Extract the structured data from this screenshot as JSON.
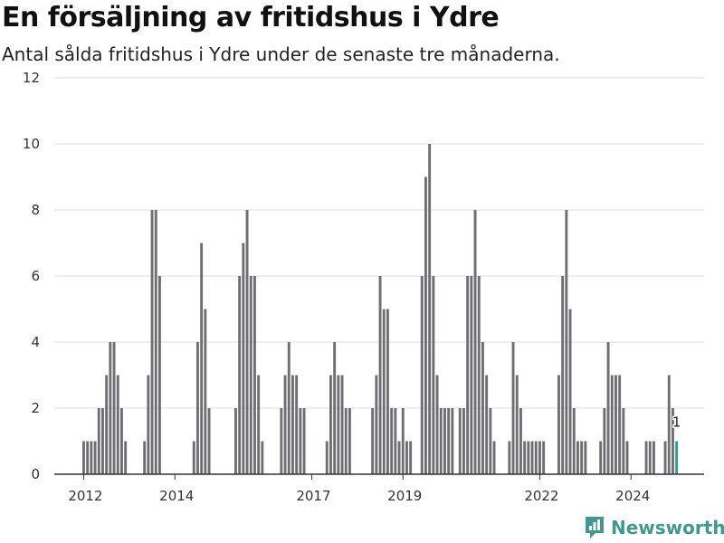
{
  "title": "En försäljning av fritidshus i Ydre",
  "subtitle": "Antal sålda fritidshus i Ydre under de senaste tre månaderna.",
  "brand": {
    "name": "Newsworthy",
    "icon": "newsworthy-logo-icon"
  },
  "colors": {
    "bar": "#6f6e73",
    "highlight": "#2a9d8f",
    "grid": "#dddddd",
    "brand": "#3f9990"
  },
  "chart_data": {
    "type": "bar",
    "title": "En försäljning av fritidshus i Ydre",
    "subtitle": "Antal sålda fritidshus i Ydre under de senaste tre månaderna.",
    "xlabel": "",
    "ylabel": "",
    "ylim": [
      0,
      12
    ],
    "yticks": [
      0,
      2,
      4,
      6,
      8,
      10,
      12
    ],
    "grid": true,
    "x_start": "2012-01",
    "x_tick_labels": [
      {
        "label": "2012",
        "x": "2012-01"
      },
      {
        "label": "2014",
        "x": "2014-01"
      },
      {
        "label": "2017",
        "x": "2017-01"
      },
      {
        "label": "2019",
        "x": "2019-01"
      },
      {
        "label": "2022",
        "x": "2022-01"
      },
      {
        "label": "2024",
        "x": "2024-01"
      }
    ],
    "values": [
      1,
      1,
      1,
      1,
      2,
      2,
      3,
      4,
      4,
      3,
      2,
      1,
      0,
      0,
      0,
      0,
      1,
      3,
      8,
      8,
      6,
      0,
      0,
      0,
      0,
      0,
      0,
      0,
      0,
      1,
      4,
      7,
      5,
      2,
      0,
      0,
      0,
      0,
      0,
      0,
      2,
      6,
      7,
      8,
      6,
      6,
      3,
      1,
      0,
      0,
      0,
      0,
      2,
      3,
      4,
      3,
      3,
      2,
      2,
      0,
      0,
      0,
      0,
      0,
      1,
      3,
      4,
      3,
      3,
      2,
      2,
      0,
      0,
      0,
      0,
      0,
      2,
      3,
      6,
      5,
      5,
      2,
      2,
      1,
      2,
      1,
      1,
      0,
      0,
      6,
      9,
      10,
      6,
      3,
      2,
      2,
      2,
      2,
      0,
      2,
      2,
      6,
      6,
      8,
      6,
      4,
      3,
      2,
      1,
      0,
      0,
      0,
      1,
      4,
      3,
      2,
      1,
      1,
      1,
      1,
      1,
      1,
      0,
      0,
      0,
      3,
      6,
      8,
      5,
      2,
      1,
      1,
      1,
      0,
      0,
      0,
      1,
      2,
      4,
      3,
      3,
      3,
      2,
      1,
      0,
      0,
      0,
      0,
      1,
      1,
      1,
      0,
      0,
      1,
      3,
      2,
      1
    ],
    "highlight": {
      "index": 156,
      "value": 1,
      "label": "1"
    },
    "series": [
      {
        "name": "",
        "values": "see values"
      }
    ]
  }
}
